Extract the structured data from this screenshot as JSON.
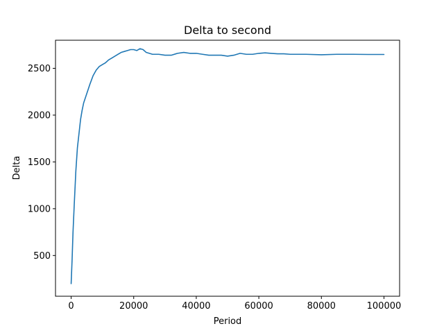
{
  "chart_data": {
    "type": "line",
    "title": "Delta to second",
    "xlabel": "Period",
    "ylabel": "Delta",
    "xlim": [
      -5000,
      105000
    ],
    "ylim": [
      65,
      2800
    ],
    "xticks": [
      0,
      20000,
      40000,
      60000,
      80000,
      100000
    ],
    "xtick_labels": [
      "0",
      "20000",
      "40000",
      "60000",
      "80000",
      "100000"
    ],
    "yticks": [
      500,
      1000,
      1500,
      2000,
      2500
    ],
    "ytick_labels": [
      "500",
      "1000",
      "1500",
      "2000",
      "2500"
    ],
    "grid": false,
    "series": [
      {
        "color": "#1f77b4",
        "x": [
          0,
          300,
          600,
          1000,
          1500,
          2000,
          2500,
          3000,
          3500,
          4000,
          4500,
          5000,
          5500,
          6000,
          7000,
          8000,
          9000,
          10000,
          11000,
          12000,
          13000,
          14000,
          15000,
          16000,
          17000,
          18000,
          19000,
          20000,
          21000,
          22000,
          23000,
          24000,
          25000,
          26000,
          28000,
          30000,
          32000,
          34000,
          36000,
          38000,
          40000,
          42000,
          44000,
          46000,
          48000,
          50000,
          52000,
          54000,
          56000,
          58000,
          60000,
          62000,
          64000,
          66000,
          68000,
          70000,
          75000,
          80000,
          85000,
          90000,
          95000,
          100000
        ],
        "y": [
          200,
          450,
          750,
          1050,
          1400,
          1650,
          1800,
          1950,
          2050,
          2130,
          2180,
          2230,
          2280,
          2330,
          2420,
          2480,
          2520,
          2540,
          2560,
          2590,
          2610,
          2630,
          2650,
          2670,
          2680,
          2690,
          2700,
          2700,
          2690,
          2710,
          2700,
          2670,
          2660,
          2650,
          2650,
          2640,
          2640,
          2660,
          2670,
          2660,
          2660,
          2650,
          2640,
          2640,
          2640,
          2630,
          2640,
          2660,
          2650,
          2650,
          2660,
          2665,
          2660,
          2655,
          2655,
          2650,
          2650,
          2645,
          2650,
          2650,
          2648,
          2648
        ]
      }
    ]
  }
}
